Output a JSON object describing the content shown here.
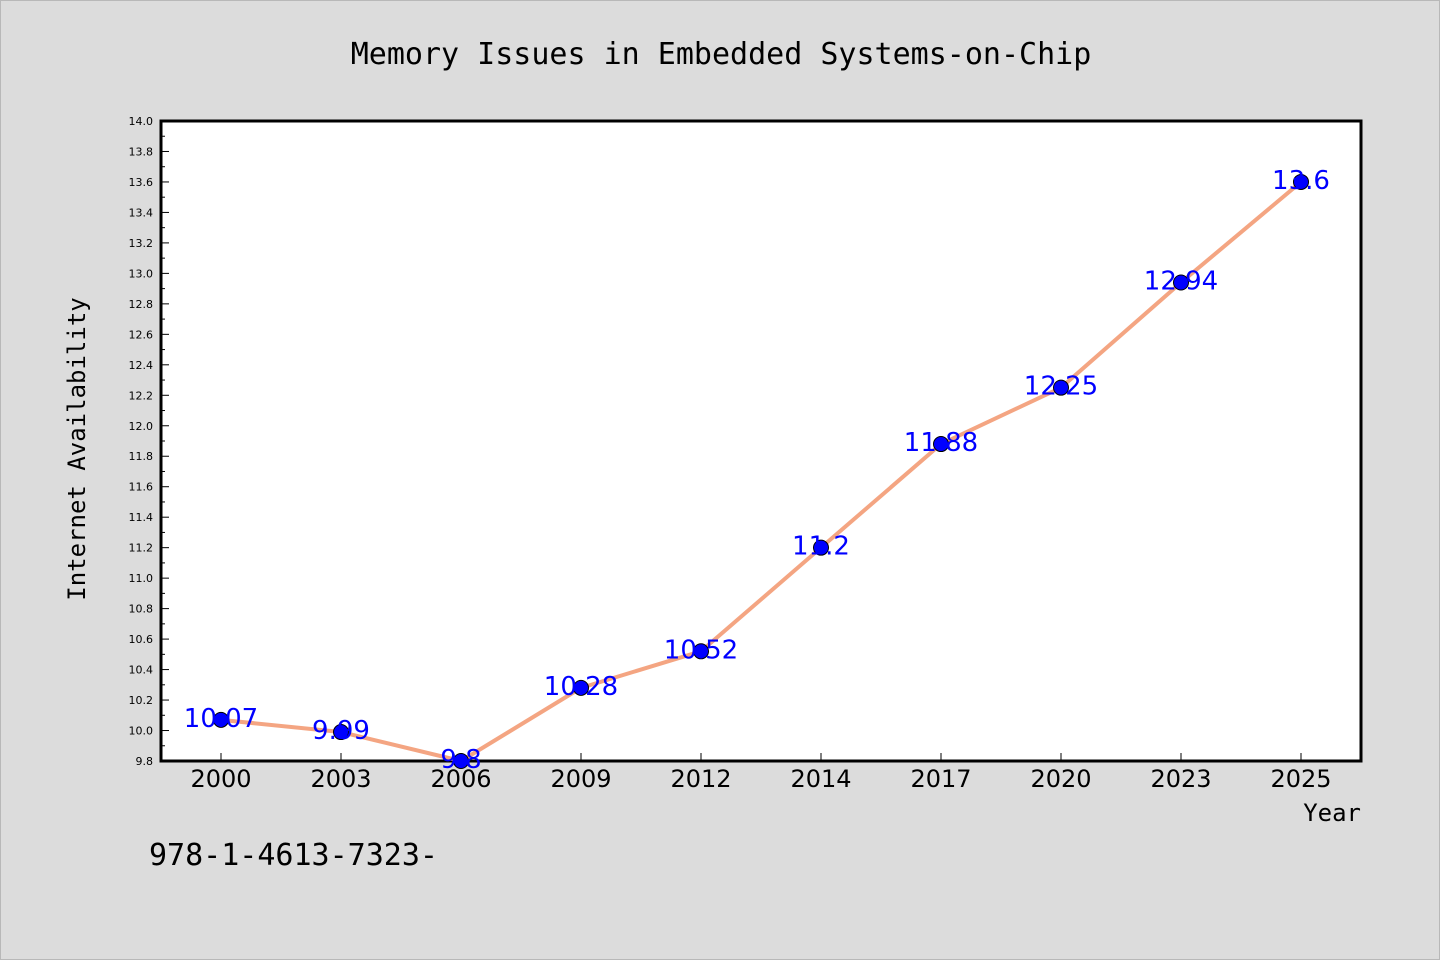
{
  "chart_data": {
    "type": "line",
    "title": "Memory Issues in Embedded Systems-on-Chip",
    "xlabel": "Year",
    "ylabel": "Internet Availability",
    "categories": [
      "2000",
      "2003",
      "2006",
      "2009",
      "2012",
      "2014",
      "2017",
      "2020",
      "2023",
      "2025"
    ],
    "series": [
      {
        "values": [
          10.07,
          9.99,
          9.8,
          10.28,
          10.52,
          11.2,
          11.88,
          12.25,
          12.94,
          13.6
        ]
      }
    ],
    "data_labels": [
      "10.07",
      "9.99",
      "9.8",
      "10.28",
      "10.52",
      "11.2",
      "11.88",
      "12.25",
      "12.94",
      "13.6"
    ],
    "ylim": [
      9.8,
      14.0
    ],
    "yticks": [
      "9.8",
      "10.0",
      "10.2",
      "10.4",
      "10.6",
      "10.8",
      "11.0",
      "11.2",
      "11.4",
      "11.6",
      "11.8",
      "12.0",
      "12.2",
      "12.4",
      "12.6",
      "12.8",
      "13.0",
      "13.2",
      "13.4",
      "13.6",
      "13.8",
      "14.0"
    ],
    "grid": false,
    "legend": "none",
    "colors": {
      "line": "#f4a582",
      "marker": "#0000ff",
      "label": "#0000ff",
      "background": "#dcdcdc",
      "plot_background": "#ffffff"
    }
  },
  "footnote": "978-1-4613-7323-"
}
